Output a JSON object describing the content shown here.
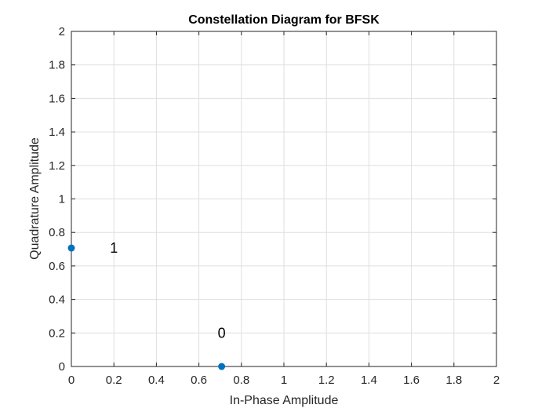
{
  "chart_data": {
    "type": "scatter",
    "title": "Constellation Diagram for BFSK",
    "xlabel": "In-Phase Amplitude",
    "ylabel": "Quadrature Amplitude",
    "xlim": [
      0,
      2
    ],
    "ylim": [
      0,
      2
    ],
    "xticks": [
      "0",
      "0.2",
      "0.4",
      "0.6",
      "0.8",
      "1",
      "1.2",
      "1.4",
      "1.6",
      "1.8",
      "2"
    ],
    "yticks": [
      "0",
      "0.2",
      "0.4",
      "0.6",
      "0.8",
      "1",
      "1.2",
      "1.4",
      "1.6",
      "1.8",
      "2"
    ],
    "grid": true,
    "points": [
      {
        "x": 0.7071,
        "y": 0
      },
      {
        "x": 0,
        "y": 0.7071
      }
    ],
    "annotations": [
      {
        "text": "0",
        "x": 0.7071,
        "y": 0.2
      },
      {
        "text": "1",
        "x": 0.2,
        "y": 0.7071
      }
    ],
    "marker_color": "#0072BD"
  }
}
